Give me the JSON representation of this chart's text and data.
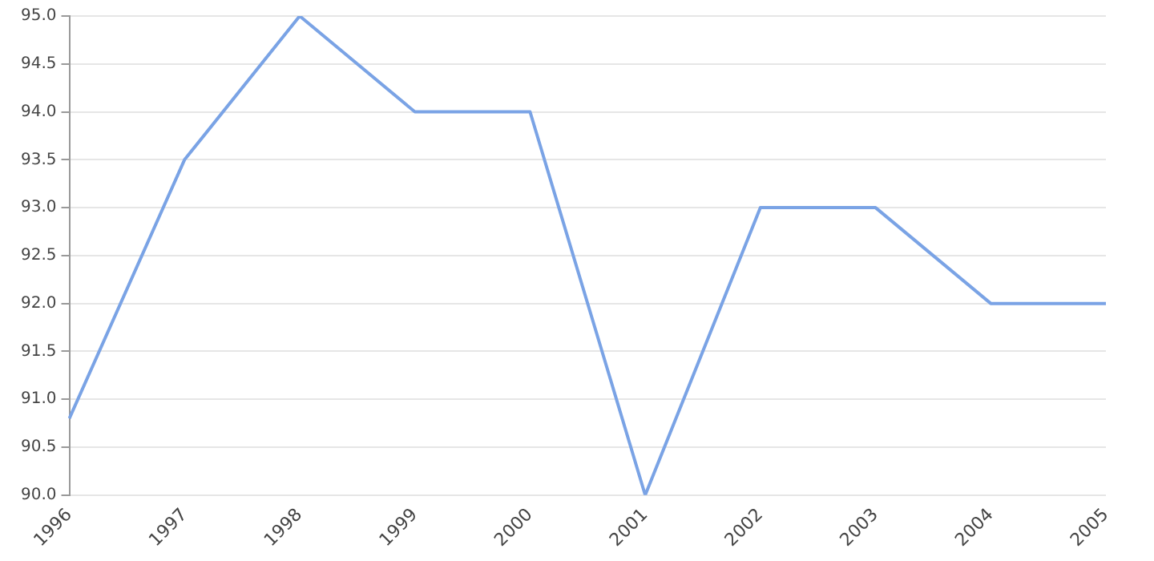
{
  "chart_data": {
    "type": "line",
    "categories": [
      "1996",
      "1997",
      "1998",
      "1999",
      "2000",
      "2001",
      "2002",
      "2003",
      "2004",
      "2005"
    ],
    "series": [
      {
        "color": "#7aa3e5",
        "values": [
          90.8,
          93.5,
          95.0,
          94.0,
          94.0,
          90.0,
          93.0,
          93.0,
          92.0,
          92.0
        ]
      }
    ],
    "ylim": [
      90,
      95
    ],
    "yticks": [
      {
        "value": 90,
        "label": "90.0"
      },
      {
        "value": 90.5,
        "label": "90.5"
      },
      {
        "value": 91,
        "label": "91.0"
      },
      {
        "value": 91.5,
        "label": "91.5"
      },
      {
        "value": 92,
        "label": "92.0"
      },
      {
        "value": 92.5,
        "label": "92.5"
      },
      {
        "value": 93,
        "label": "93.0"
      },
      {
        "value": 93.5,
        "label": "93.5"
      },
      {
        "value": 94,
        "label": "94.0"
      },
      {
        "value": 94.5,
        "label": "94.5"
      },
      {
        "value": 95,
        "label": "95.0"
      }
    ],
    "grid": "y",
    "legend": false,
    "marker": "none",
    "line_style": "solid"
  }
}
